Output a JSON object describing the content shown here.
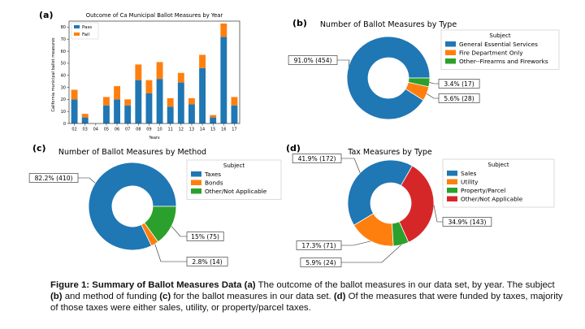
{
  "panels": {
    "a": {
      "letter": "(a)",
      "chart_data": {
        "type": "bar",
        "stacked": true,
        "title": "Outcome of Ca Municipal Ballot Measures by Year",
        "xlabel": "Years",
        "ylabel": "California municipal ballot measures",
        "ylim": [
          0,
          85
        ],
        "yticks": [
          0,
          10,
          20,
          30,
          40,
          50,
          60,
          70,
          80
        ],
        "categories": [
          "02",
          "03",
          "04",
          "05",
          "06",
          "07",
          "08",
          "09",
          "10",
          "11",
          "12",
          "13",
          "14",
          "15",
          "16",
          "17"
        ],
        "series": [
          {
            "name": "Pass",
            "color": "#1f77b4",
            "values": [
              20,
              5,
              0,
              15,
              20,
              15,
              36,
              25,
              37,
              14,
              34,
              16,
              46,
              5,
              72,
              15
            ]
          },
          {
            "name": "Fail",
            "color": "#ff7f0e",
            "values": [
              8,
              3,
              0,
              7,
              11,
              5,
              13,
              11,
              14,
              7,
              8,
              5,
              11,
              2,
              11,
              7
            ]
          }
        ],
        "grid": false,
        "legend_position": "top-left"
      }
    },
    "b": {
      "letter": "(b)",
      "chart_data": {
        "type": "pie",
        "donut": true,
        "title": "Number of Ballot Measures by Type",
        "legend_title": "Subject",
        "legend_position": "top-right",
        "slices": [
          {
            "name": "General Essential Services",
            "value": 454,
            "label": "91.0% (454)",
            "color": "#1f77b4"
          },
          {
            "name": "Fire Department Only",
            "value": 28,
            "label": "5.6% (28)",
            "color": "#ff7f0e"
          },
          {
            "name": "Other--Firearms and Fireworks",
            "value": 17,
            "label": "3.4% (17)",
            "color": "#2ca02c"
          }
        ]
      }
    },
    "c": {
      "letter": "(c)",
      "chart_data": {
        "type": "pie",
        "donut": true,
        "title": "Number of Ballot Measures by Method",
        "legend_title": "Subject",
        "legend_position": "top-right",
        "slices": [
          {
            "name": "Taxes",
            "value": 410,
            "label": "82.2% (410)",
            "color": "#1f77b4"
          },
          {
            "name": "Bonds",
            "value": 14,
            "label": "2.8% (14)",
            "color": "#ff7f0e"
          },
          {
            "name": "Other/Not Applicable",
            "value": 75,
            "label": "15% (75)",
            "color": "#2ca02c"
          }
        ]
      }
    },
    "d": {
      "letter": "(d)",
      "chart_data": {
        "type": "pie",
        "donut": true,
        "title": "Tax Measures by Type",
        "legend_title": "Subject",
        "legend_position": "top-right",
        "slices": [
          {
            "name": "Sales",
            "value": 172,
            "label": "41.9% (172)",
            "color": "#1f77b4"
          },
          {
            "name": "Utility",
            "value": 71,
            "label": "17.3% (71)",
            "color": "#ff7f0e"
          },
          {
            "name": "Property/Parcel",
            "value": 24,
            "label": "5.9% (24)",
            "color": "#2ca02c"
          },
          {
            "name": "Other/Not Applicable",
            "value": 143,
            "label": "34.9% (143)",
            "color": "#d62728"
          }
        ]
      }
    }
  },
  "caption": {
    "lead": "Figure 1: Summary of Ballot Measures Data",
    "a_tag": "(a)",
    "a_text": " The outcome of the ballot measures in our data set, by year. The subject ",
    "b_tag": "(b)",
    "b_text": " and method of funding ",
    "c_tag": "(c)",
    "c_text": " for the ballot measures in our data set. ",
    "d_tag": "(d)",
    "d_text": " Of the measures that were funded by taxes, majority of those taxes were either sales, utility, or property/parcel taxes."
  }
}
